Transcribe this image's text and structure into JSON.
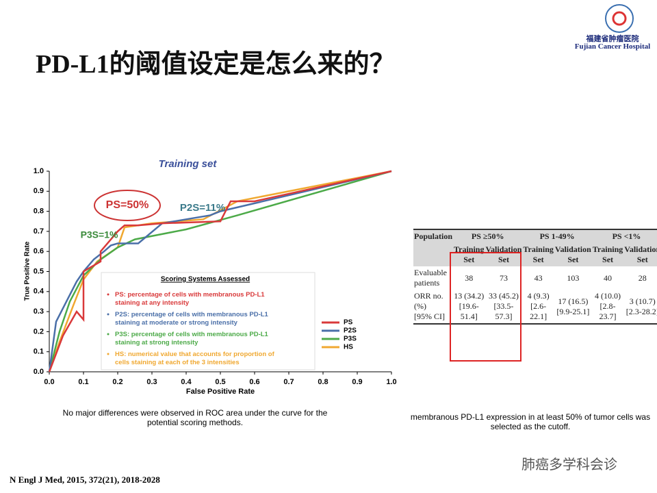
{
  "header": {
    "title": "PD-L1的阈值设定是怎么来的？",
    "logo_cn": "福建省肿瘤医院",
    "logo_en": "Fujian Cancer Hospital"
  },
  "chart_data": {
    "type": "line",
    "title": "Training set",
    "x_label": "False Positive Rate",
    "y_label": "True Positive Rate",
    "xlim": [
      0,
      1
    ],
    "ylim": [
      0,
      1
    ],
    "xticks": [
      {
        "value": 0,
        "label": "0.0"
      },
      0.1,
      0.2,
      0.3,
      0.4,
      0.5,
      0.6,
      0.7,
      0.8,
      0.9,
      {
        "value": 1,
        "label": "1.0"
      }
    ],
    "yticks": [
      {
        "value": 0,
        "label": "0.0"
      },
      0.1,
      0.2,
      0.3,
      0.4,
      0.5,
      0.6,
      0.7,
      0.8,
      0.9,
      {
        "value": 1,
        "label": "1.0"
      }
    ],
    "grid": false,
    "series": [
      {
        "name": "PS",
        "color": "#d9393a",
        "x": [
          0,
          0.04,
          0.08,
          0.1,
          0.1,
          0.12,
          0.15,
          0.15,
          0.2,
          0.22,
          0.26,
          0.33,
          0.5,
          0.53,
          0.6,
          1
        ],
        "values": [
          0,
          0.18,
          0.3,
          0.26,
          0.5,
          0.52,
          0.55,
          0.6,
          0.7,
          0.73,
          0.73,
          0.74,
          0.75,
          0.85,
          0.85,
          1
        ]
      },
      {
        "name": "P2S",
        "color": "#4a6fa8",
        "x": [
          0,
          0.02,
          0.05,
          0.08,
          0.1,
          0.13,
          0.16,
          0.18,
          0.2,
          0.26,
          0.33,
          0.4,
          0.47,
          0.5,
          1
        ],
        "values": [
          0,
          0.25,
          0.35,
          0.45,
          0.5,
          0.56,
          0.6,
          0.63,
          0.64,
          0.64,
          0.74,
          0.76,
          0.78,
          0.8,
          1
        ]
      },
      {
        "name": "P3S",
        "color": "#4caa48",
        "x": [
          0,
          0.03,
          0.06,
          0.1,
          0.15,
          0.2,
          0.25,
          0.4,
          0.55,
          1
        ],
        "values": [
          0,
          0.2,
          0.35,
          0.48,
          0.56,
          0.62,
          0.66,
          0.71,
          0.78,
          1
        ]
      },
      {
        "name": "HS",
        "color": "#f0a830",
        "x": [
          0,
          0.03,
          0.07,
          0.1,
          0.14,
          0.2,
          0.22,
          0.3,
          0.45,
          0.55,
          1
        ],
        "values": [
          0,
          0.15,
          0.33,
          0.46,
          0.55,
          0.62,
          0.72,
          0.74,
          0.76,
          0.85,
          1
        ]
      }
    ],
    "annotations": [
      "PS=50%",
      "P2S=11%",
      "P3S=1%"
    ],
    "box_title": "Scoring Systems Assessed",
    "box_items": [
      "PS: percentage of cells with membranous PD-L1 staining at any intensity",
      "P2S: percentage of cells with membranous PD-L1 staining at moderate or strong intensity",
      "P3S: percentage of cells with membranous PD-L1 staining at strong intensity",
      "HS: numerical value that accounts for proportion of cells staining at each of the 3 intensities"
    ]
  },
  "table": {
    "population": "Population",
    "groups": [
      "PS ≥50%",
      "PS 1-49%",
      "PS <1%"
    ],
    "subheaders": [
      "Training Set",
      "Validation Set",
      "Training Set",
      "Validation Set",
      "Training Set",
      "Validation Set"
    ],
    "rows": [
      {
        "label": [
          "Evaluable patients"
        ],
        "cells": [
          [
            "38"
          ],
          [
            "73"
          ],
          [
            "43"
          ],
          [
            "103"
          ],
          [
            "40"
          ],
          [
            "28"
          ]
        ]
      },
      {
        "label": [
          "ORR no. (%)",
          "[95% CI]"
        ],
        "cells": [
          [
            "13 (34.2)",
            "[19.6-51.4]"
          ],
          [
            "33 (45.2)",
            "[33.5-57.3]"
          ],
          [
            "4 (9.3)",
            "[2.6-22.1]"
          ],
          [
            "17 (16.5)",
            "[9.9-25.1]"
          ],
          [
            "4 (10.0)",
            "[2.8-23.7]"
          ],
          [
            "3 (10.7)",
            "[2.3-28.2]"
          ]
        ]
      }
    ]
  },
  "captions": {
    "left": "No major differences were observed in ROC area under the curve for the potential scoring methods.",
    "right": "membranous PD-L1 expression in at least 50% of tumor cells was selected as the cutoff."
  },
  "footer": {
    "citation": "N Engl J Med, 2015, 372(21), 2018-2028",
    "watermark": "肺癌多学科会诊"
  }
}
